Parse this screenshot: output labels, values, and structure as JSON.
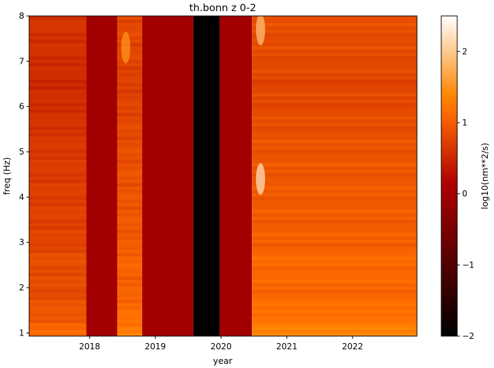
{
  "chart_data": {
    "type": "heatmap",
    "title": "th.bonn z 0-2",
    "xlabel": "year",
    "ylabel": "freq (Hz)",
    "xlim": [
      2017.08,
      2022.98
    ],
    "ylim": [
      0.93,
      8.0
    ],
    "x_ticks": [
      2018,
      2019,
      2020,
      2021,
      2022
    ],
    "y_ticks": [
      1,
      2,
      3,
      4,
      5,
      6,
      7,
      8
    ],
    "colorbar": {
      "label": "log10(nm**2/s)",
      "range": [
        -2,
        2.5
      ],
      "ticks": [
        -2,
        -1,
        0,
        1,
        2
      ],
      "colormap": "gist_heat"
    },
    "segments": [
      {
        "start": 2017.08,
        "end": 2017.95,
        "value": 0.75
      },
      {
        "start": 2017.95,
        "end": 2018.42,
        "value": 0.0
      },
      {
        "start": 2018.42,
        "end": 2018.8,
        "value": 0.95
      },
      {
        "start": 2018.8,
        "end": 2019.58,
        "value": 0.0
      },
      {
        "start": 2019.58,
        "end": 2019.98,
        "value": -2.0
      },
      {
        "start": 2019.98,
        "end": 2020.47,
        "value": 0.0
      },
      {
        "start": 2020.47,
        "end": 2022.98,
        "value": 1.0
      }
    ],
    "frequency_profile": [
      {
        "freq": 1.0,
        "value": 1.4
      },
      {
        "freq": 1.3,
        "value": 1.25
      },
      {
        "freq": 2.0,
        "value": 1.1
      },
      {
        "freq": 2.6,
        "value": 1.15
      },
      {
        "freq": 3.0,
        "value": 1.05
      },
      {
        "freq": 4.0,
        "value": 1.0
      },
      {
        "freq": 5.0,
        "value": 0.95
      },
      {
        "freq": 6.0,
        "value": 0.85
      },
      {
        "freq": 6.5,
        "value": 0.8
      },
      {
        "freq": 7.0,
        "value": 0.85
      },
      {
        "freq": 8.0,
        "value": 0.9
      }
    ],
    "hotspots": [
      {
        "year": 2020.6,
        "freq": 4.4,
        "value": 2.2
      },
      {
        "year": 2020.6,
        "freq": 7.7,
        "value": 1.9
      },
      {
        "year": 2018.55,
        "freq": 7.3,
        "value": 1.5
      }
    ]
  }
}
